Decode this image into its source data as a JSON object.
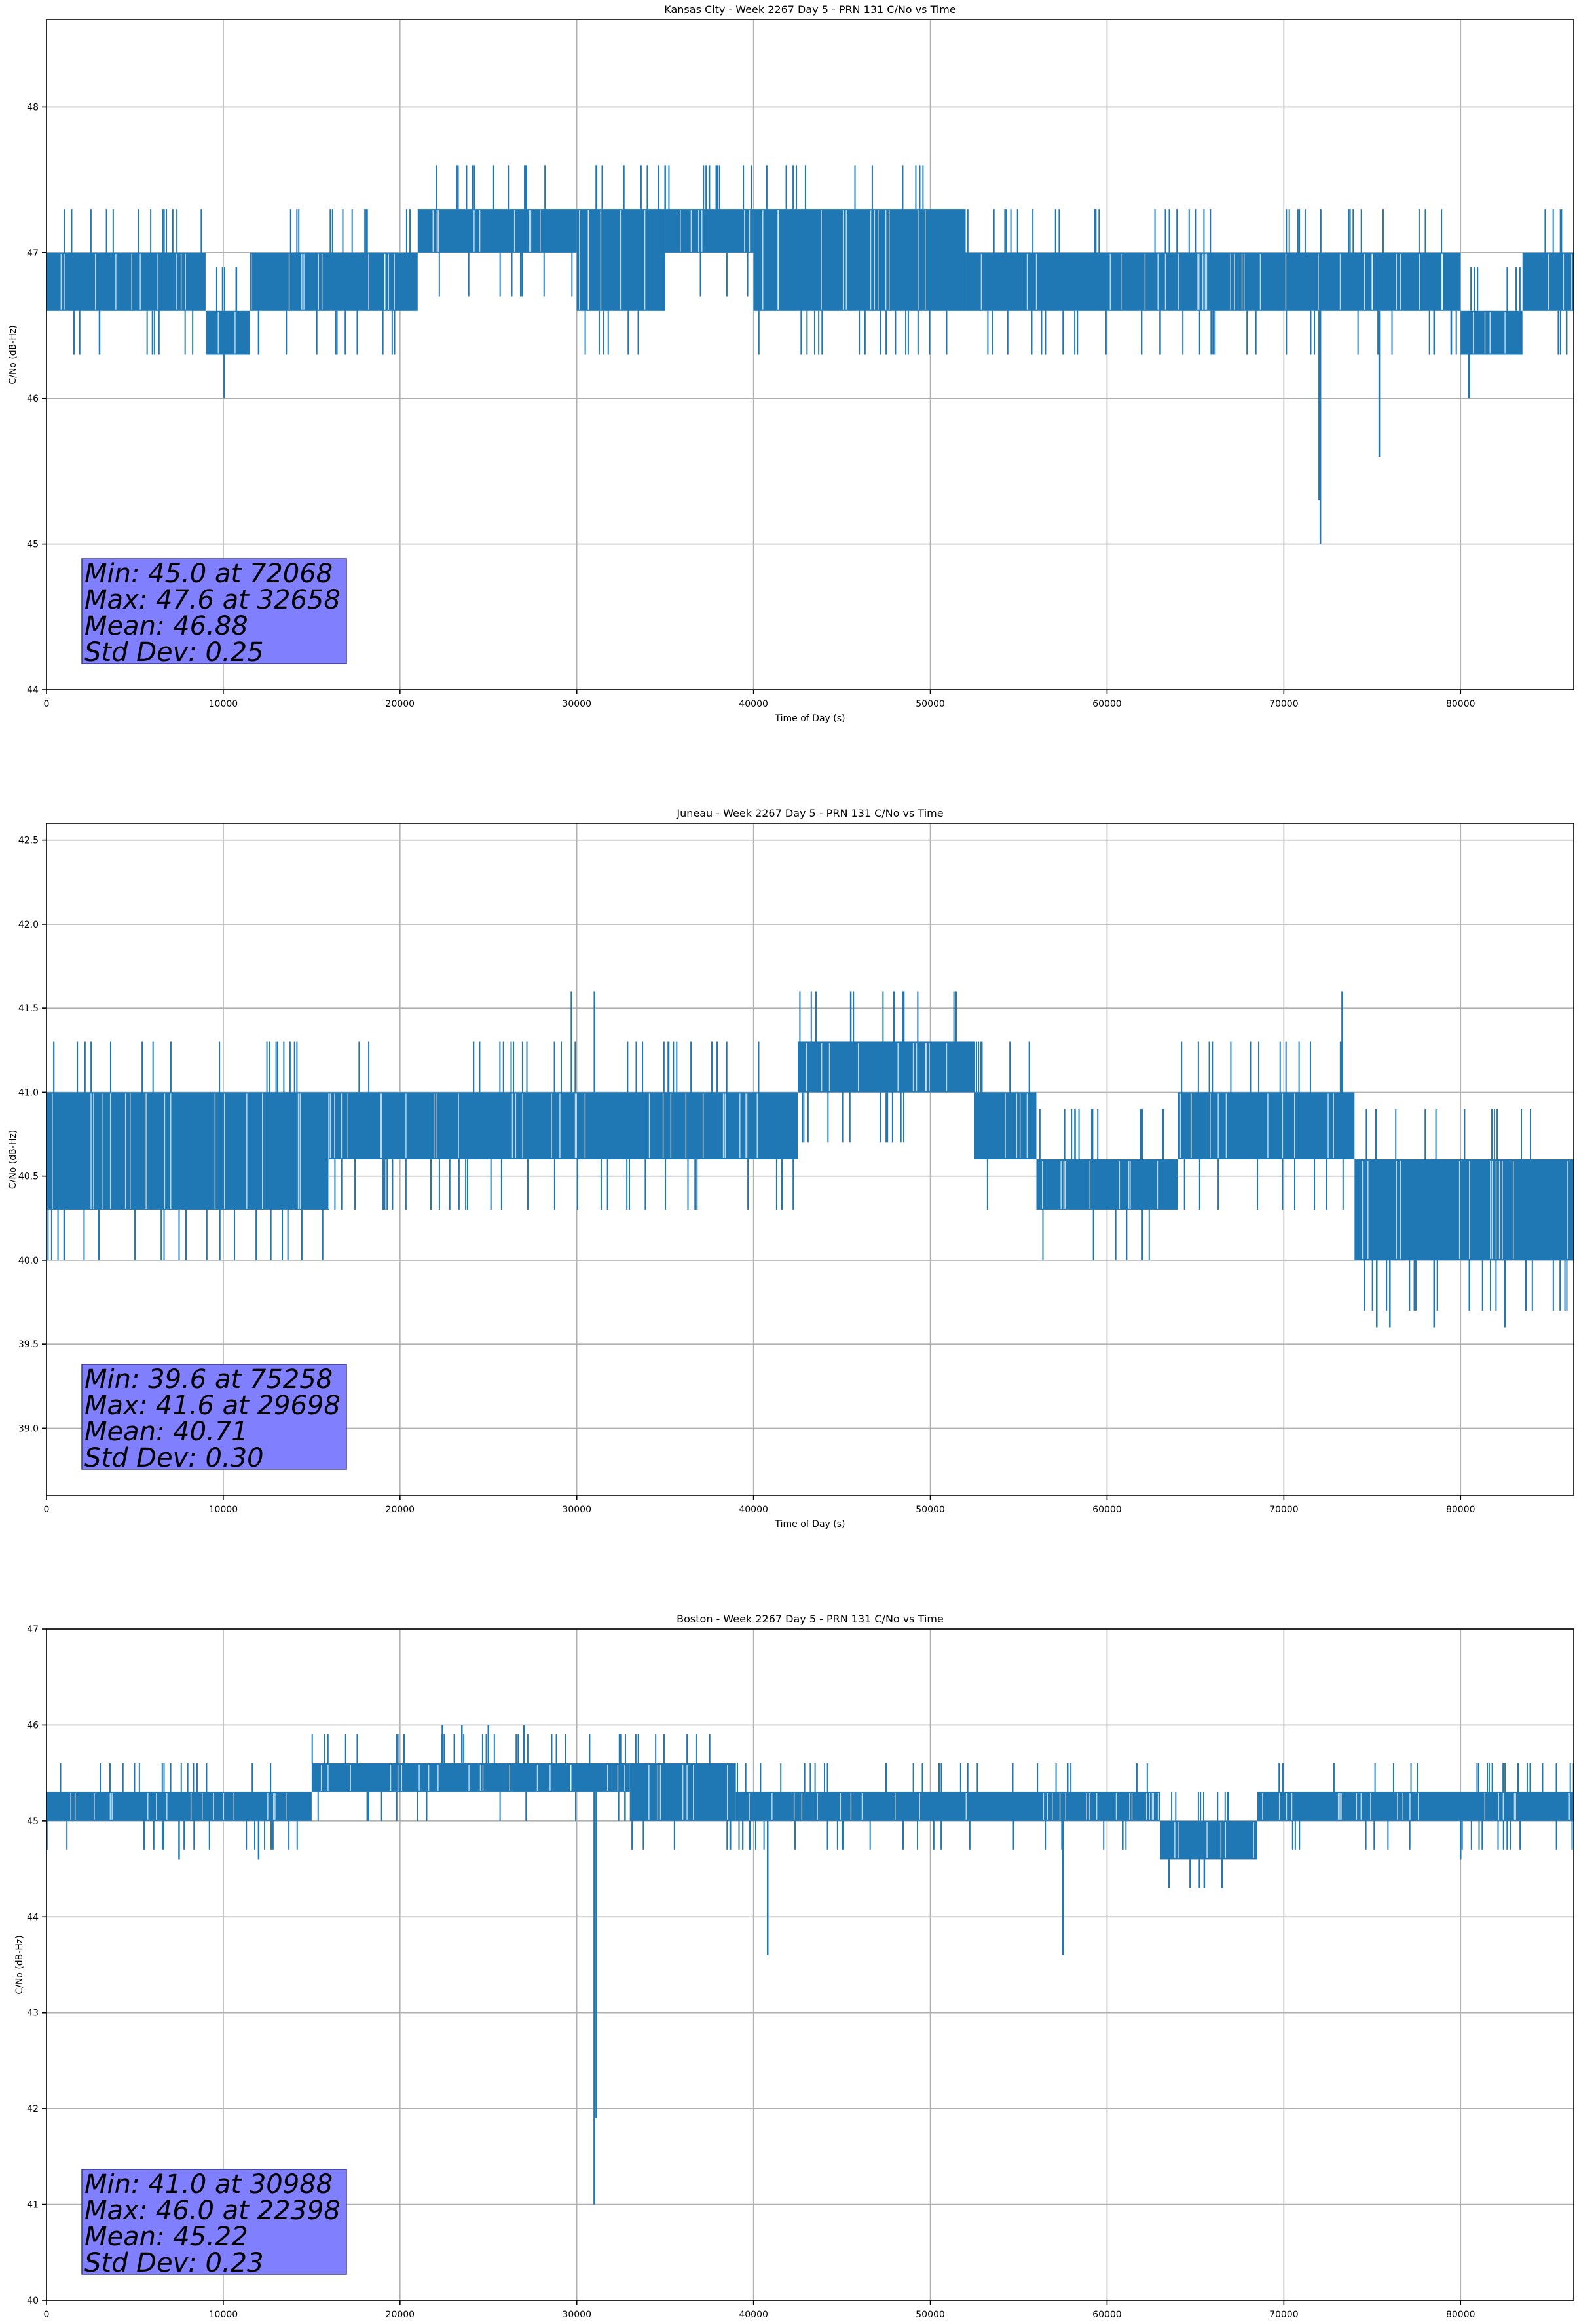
{
  "chart_data": [
    {
      "type": "line",
      "title": "Kansas City - Week 2267 Day 5 - PRN 131 C/No vs Time",
      "xlabel": "Time of Day (s)",
      "ylabel": "C/No (dB-Hz)",
      "xlim": [
        0,
        86400
      ],
      "ylim": [
        44,
        48.6
      ],
      "xticks": [
        "0",
        "10000",
        "20000",
        "30000",
        "40000",
        "50000",
        "60000",
        "70000",
        "80000"
      ],
      "xtick_values": [
        0,
        10000,
        20000,
        30000,
        40000,
        50000,
        60000,
        70000,
        80000
      ],
      "yticks": [
        "44",
        "45",
        "46",
        "47",
        "48"
      ],
      "ytick_values": [
        44,
        45,
        46,
        47,
        48
      ],
      "grid": true,
      "series_color": "#1f77b4",
      "bands": [
        {
          "x0": 0,
          "x1": 9000,
          "lo": 46.6,
          "hi": 47.0
        },
        {
          "x0": 9000,
          "x1": 11500,
          "lo": 46.3,
          "hi": 46.6
        },
        {
          "x0": 11500,
          "x1": 21000,
          "lo": 46.6,
          "hi": 47.0
        },
        {
          "x0": 21000,
          "x1": 30000,
          "lo": 47.0,
          "hi": 47.3
        },
        {
          "x0": 30000,
          "x1": 35000,
          "lo": 46.6,
          "hi": 47.3
        },
        {
          "x0": 35000,
          "x1": 40000,
          "lo": 47.0,
          "hi": 47.3
        },
        {
          "x0": 40000,
          "x1": 52000,
          "lo": 46.6,
          "hi": 47.3
        },
        {
          "x0": 52000,
          "x1": 80000,
          "lo": 46.6,
          "hi": 47.0
        },
        {
          "x0": 80000,
          "x1": 83500,
          "lo": 46.3,
          "hi": 46.6
        },
        {
          "x0": 83500,
          "x1": 86400,
          "lo": 46.6,
          "hi": 47.0
        }
      ],
      "spikes": [
        {
          "x": 72068,
          "y": 45.0
        },
        {
          "x": 75400,
          "y": 45.6
        },
        {
          "x": 72000,
          "y": 45.3
        },
        {
          "x": 32658,
          "y": 47.6
        },
        {
          "x": 34000,
          "y": 47.6
        },
        {
          "x": 35000,
          "y": 47.6
        },
        {
          "x": 37500,
          "y": 47.6
        },
        {
          "x": 3000,
          "y": 46.3
        },
        {
          "x": 6000,
          "y": 46.3
        },
        {
          "x": 12000,
          "y": 46.3
        },
        {
          "x": 63000,
          "y": 46.3
        },
        {
          "x": 66000,
          "y": 46.3
        },
        {
          "x": 78500,
          "y": 46.3
        },
        {
          "x": 86000,
          "y": 46.3
        }
      ],
      "stats": [
        "Min: 45.0 at 72068",
        "Max: 47.6 at 32658",
        "Mean: 46.88",
        "Std Dev: 0.25"
      ]
    },
    {
      "type": "line",
      "title": "Juneau - Week 2267 Day 5 - PRN 131 C/No vs Time",
      "xlabel": "Time of Day (s)",
      "ylabel": "C/No (dB-Hz)",
      "xlim": [
        0,
        86400
      ],
      "ylim": [
        38.6,
        42.6
      ],
      "xticks": [
        "0",
        "10000",
        "20000",
        "30000",
        "40000",
        "50000",
        "60000",
        "70000",
        "80000"
      ],
      "xtick_values": [
        0,
        10000,
        20000,
        30000,
        40000,
        50000,
        60000,
        70000,
        80000
      ],
      "yticks": [
        "39.0",
        "39.5",
        "40.0",
        "40.5",
        "41.0",
        "41.5",
        "42.0",
        "42.5"
      ],
      "ytick_values": [
        39.0,
        39.5,
        40.0,
        40.5,
        41.0,
        41.5,
        42.0,
        42.5
      ],
      "grid": true,
      "series_color": "#1f77b4",
      "bands": [
        {
          "x0": 0,
          "x1": 16000,
          "lo": 40.3,
          "hi": 41.0
        },
        {
          "x0": 16000,
          "x1": 42500,
          "lo": 40.6,
          "hi": 41.0
        },
        {
          "x0": 42500,
          "x1": 52500,
          "lo": 41.0,
          "hi": 41.3
        },
        {
          "x0": 52500,
          "x1": 56000,
          "lo": 40.6,
          "hi": 41.0
        },
        {
          "x0": 56000,
          "x1": 64000,
          "lo": 40.3,
          "hi": 40.6
        },
        {
          "x0": 64000,
          "x1": 74000,
          "lo": 40.6,
          "hi": 41.0
        },
        {
          "x0": 74000,
          "x1": 86400,
          "lo": 40.0,
          "hi": 40.6
        }
      ],
      "spikes": [
        {
          "x": 75258,
          "y": 39.6
        },
        {
          "x": 76000,
          "y": 39.6
        },
        {
          "x": 78500,
          "y": 39.6
        },
        {
          "x": 80500,
          "y": 39.7
        },
        {
          "x": 82500,
          "y": 39.6
        },
        {
          "x": 29698,
          "y": 41.6
        },
        {
          "x": 31000,
          "y": 41.6
        },
        {
          "x": 45500,
          "y": 41.6
        },
        {
          "x": 48500,
          "y": 41.6
        },
        {
          "x": 73300,
          "y": 41.6
        },
        {
          "x": 6500,
          "y": 40.0
        },
        {
          "x": 9800,
          "y": 40.0
        },
        {
          "x": 62000,
          "y": 40.0
        },
        {
          "x": 1000,
          "y": 40.0
        }
      ],
      "stats": [
        "Min: 39.6 at 75258",
        "Max: 41.6 at 29698",
        "Mean: 40.71",
        "Std Dev: 0.30"
      ]
    },
    {
      "type": "line",
      "title": "Boston - Week 2267 Day 5 - PRN 131 C/No vs Time",
      "xlabel": "Time of Day (s)",
      "ylabel": "C/No (dB-Hz)",
      "xlim": [
        0,
        86400
      ],
      "ylim": [
        40,
        47
      ],
      "xticks": [
        "0",
        "10000",
        "20000",
        "30000",
        "40000",
        "50000",
        "60000",
        "70000",
        "80000"
      ],
      "xtick_values": [
        0,
        10000,
        20000,
        30000,
        40000,
        50000,
        60000,
        70000,
        80000
      ],
      "yticks": [
        "40",
        "41",
        "42",
        "43",
        "44",
        "45",
        "46",
        "47"
      ],
      "ytick_values": [
        40,
        41,
        42,
        43,
        44,
        45,
        46,
        47
      ],
      "grid": true,
      "series_color": "#1f77b4",
      "bands": [
        {
          "x0": 0,
          "x1": 15000,
          "lo": 45.0,
          "hi": 45.3
        },
        {
          "x0": 15000,
          "x1": 26000,
          "lo": 45.3,
          "hi": 45.6
        },
        {
          "x0": 26000,
          "x1": 33000,
          "lo": 45.3,
          "hi": 45.6
        },
        {
          "x0": 33000,
          "x1": 39000,
          "lo": 45.0,
          "hi": 45.6
        },
        {
          "x0": 39000,
          "x1": 63000,
          "lo": 45.0,
          "hi": 45.3
        },
        {
          "x0": 63000,
          "x1": 68500,
          "lo": 44.6,
          "hi": 45.0
        },
        {
          "x0": 68500,
          "x1": 86400,
          "lo": 45.0,
          "hi": 45.3
        }
      ],
      "spikes": [
        {
          "x": 30988,
          "y": 41.0
        },
        {
          "x": 31100,
          "y": 41.9
        },
        {
          "x": 40800,
          "y": 43.6
        },
        {
          "x": 57500,
          "y": 43.6
        },
        {
          "x": 22398,
          "y": 46.0
        },
        {
          "x": 23500,
          "y": 46.0
        },
        {
          "x": 25000,
          "y": 46.0
        },
        {
          "x": 27000,
          "y": 46.0
        },
        {
          "x": 7500,
          "y": 44.6
        },
        {
          "x": 12000,
          "y": 44.6
        },
        {
          "x": 65500,
          "y": 44.3
        },
        {
          "x": 66500,
          "y": 44.3
        },
        {
          "x": 80000,
          "y": 44.6
        }
      ],
      "stats": [
        "Min: 41.0 at 30988",
        "Max: 46.0 at 22398",
        "Mean: 45.22",
        "Std Dev: 0.23"
      ]
    }
  ]
}
